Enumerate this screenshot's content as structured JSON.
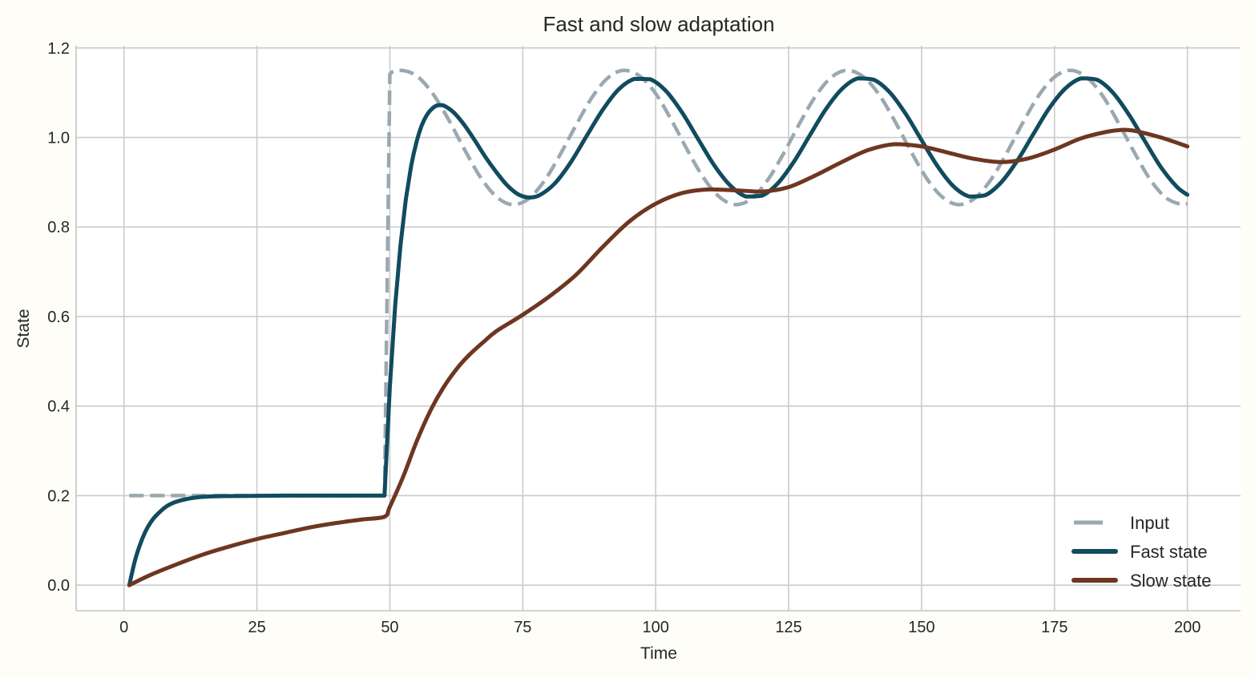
{
  "chart_data": {
    "type": "line",
    "title": "Fast and slow adaptation",
    "xlabel": "Time",
    "ylabel": "State",
    "xlim": [
      -9,
      210
    ],
    "ylim": [
      -0.057,
      1.205
    ],
    "xticks": [
      0,
      25,
      50,
      75,
      100,
      125,
      150,
      175,
      200
    ],
    "xtick_labels": [
      "0",
      "25",
      "50",
      "75",
      "100",
      "125",
      "150",
      "175",
      "200"
    ],
    "yticks": [
      0.0,
      0.2,
      0.4,
      0.6,
      0.8,
      1.0,
      1.2
    ],
    "ytick_labels": [
      "0.0",
      "0.2",
      "0.4",
      "0.6",
      "0.8",
      "1.0",
      "1.2"
    ],
    "grid": true,
    "legend_position": "bottom-right",
    "series": [
      {
        "name": "Input",
        "color": "#9aa8b0",
        "style": "dashed",
        "x": [
          1,
          49,
          50,
          52,
          55,
          58,
          61,
          64,
          67,
          70,
          73,
          76,
          79,
          82,
          85,
          88,
          91,
          94,
          97,
          100,
          103,
          106,
          109,
          112,
          115,
          118,
          121,
          124,
          127,
          130,
          133,
          136,
          139,
          142,
          145,
          148,
          151,
          154,
          157,
          160,
          163,
          166,
          169,
          172,
          175,
          178,
          181,
          184,
          187,
          190,
          193,
          196,
          199,
          200
        ],
        "y": [
          0.2,
          0.2,
          1.141,
          1.15,
          1.138,
          1.099,
          1.041,
          0.974,
          0.912,
          0.868,
          0.85,
          0.862,
          0.902,
          0.961,
          1.027,
          1.089,
          1.133,
          1.15,
          1.137,
          1.098,
          1.038,
          0.971,
          0.91,
          0.867,
          0.85,
          0.863,
          0.904,
          0.963,
          1.03,
          1.091,
          1.134,
          1.15,
          1.136,
          1.096,
          1.036,
          0.969,
          0.908,
          0.866,
          0.85,
          0.864,
          0.905,
          0.965,
          1.032,
          1.093,
          1.135,
          1.15,
          1.135,
          1.094,
          1.033,
          0.967,
          0.906,
          0.865,
          0.85,
          0.852
        ]
      },
      {
        "name": "Fast state",
        "color": "#114b5f",
        "style": "solid",
        "x": [
          1,
          2,
          3,
          4,
          5,
          6,
          8,
          10,
          13,
          16,
          20,
          30,
          40,
          49,
          50,
          51,
          52,
          53,
          54,
          55,
          56,
          57,
          58,
          59,
          60,
          62,
          64,
          66,
          68,
          70,
          72,
          74,
          76,
          78,
          81,
          84,
          87,
          90,
          93,
          96,
          99,
          102,
          105,
          108,
          111,
          114,
          117,
          120,
          123,
          126,
          129,
          132,
          135,
          138,
          141,
          144,
          147,
          150,
          153,
          156,
          159,
          162,
          165,
          168,
          171,
          174,
          177,
          180,
          183,
          186,
          189,
          192,
          195,
          198,
          200
        ],
        "y": [
          0,
          0.052,
          0.09,
          0.119,
          0.14,
          0.155,
          0.176,
          0.187,
          0.195,
          0.198,
          0.199,
          0.2,
          0.2,
          0.2,
          0.443,
          0.624,
          0.759,
          0.861,
          0.936,
          0.989,
          1.027,
          1.051,
          1.065,
          1.072,
          1.072,
          1.056,
          1.028,
          0.993,
          0.956,
          0.923,
          0.894,
          0.874,
          0.866,
          0.87,
          0.897,
          0.944,
          1.003,
          1.061,
          1.107,
          1.131,
          1.13,
          1.103,
          1.055,
          0.996,
          0.938,
          0.893,
          0.868,
          0.87,
          0.898,
          0.946,
          1.005,
          1.063,
          1.108,
          1.132,
          1.129,
          1.101,
          1.053,
          0.994,
          0.936,
          0.891,
          0.868,
          0.871,
          0.9,
          0.948,
          1.007,
          1.065,
          1.109,
          1.132,
          1.129,
          1.1,
          1.051,
          0.992,
          0.934,
          0.89,
          0.872
        ]
      },
      {
        "name": "Slow state",
        "color": "#6e3621",
        "style": "solid",
        "x": [
          1,
          5,
          10,
          15,
          20,
          25,
          30,
          35,
          40,
          45,
          49,
          50,
          52.6,
          55,
          57.6,
          60,
          62.7,
          65,
          67.7,
          70,
          75,
          80,
          85,
          90,
          95,
          100,
          105,
          110,
          115,
          120,
          125,
          130,
          135,
          140,
          145,
          150,
          155,
          160,
          165,
          170,
          175,
          180,
          185,
          188,
          190,
          195,
          200
        ],
        "y": [
          0,
          0.023,
          0.047,
          0.069,
          0.087,
          0.103,
          0.116,
          0.129,
          0.139,
          0.147,
          0.153,
          0.175,
          0.245,
          0.32,
          0.389,
          0.44,
          0.485,
          0.515,
          0.544,
          0.567,
          0.604,
          0.645,
          0.693,
          0.755,
          0.812,
          0.852,
          0.876,
          0.884,
          0.882,
          0.879,
          0.889,
          0.915,
          0.945,
          0.972,
          0.985,
          0.98,
          0.966,
          0.952,
          0.945,
          0.953,
          0.973,
          0.998,
          1.013,
          1.017,
          1.015,
          1.0,
          0.98
        ]
      }
    ]
  }
}
